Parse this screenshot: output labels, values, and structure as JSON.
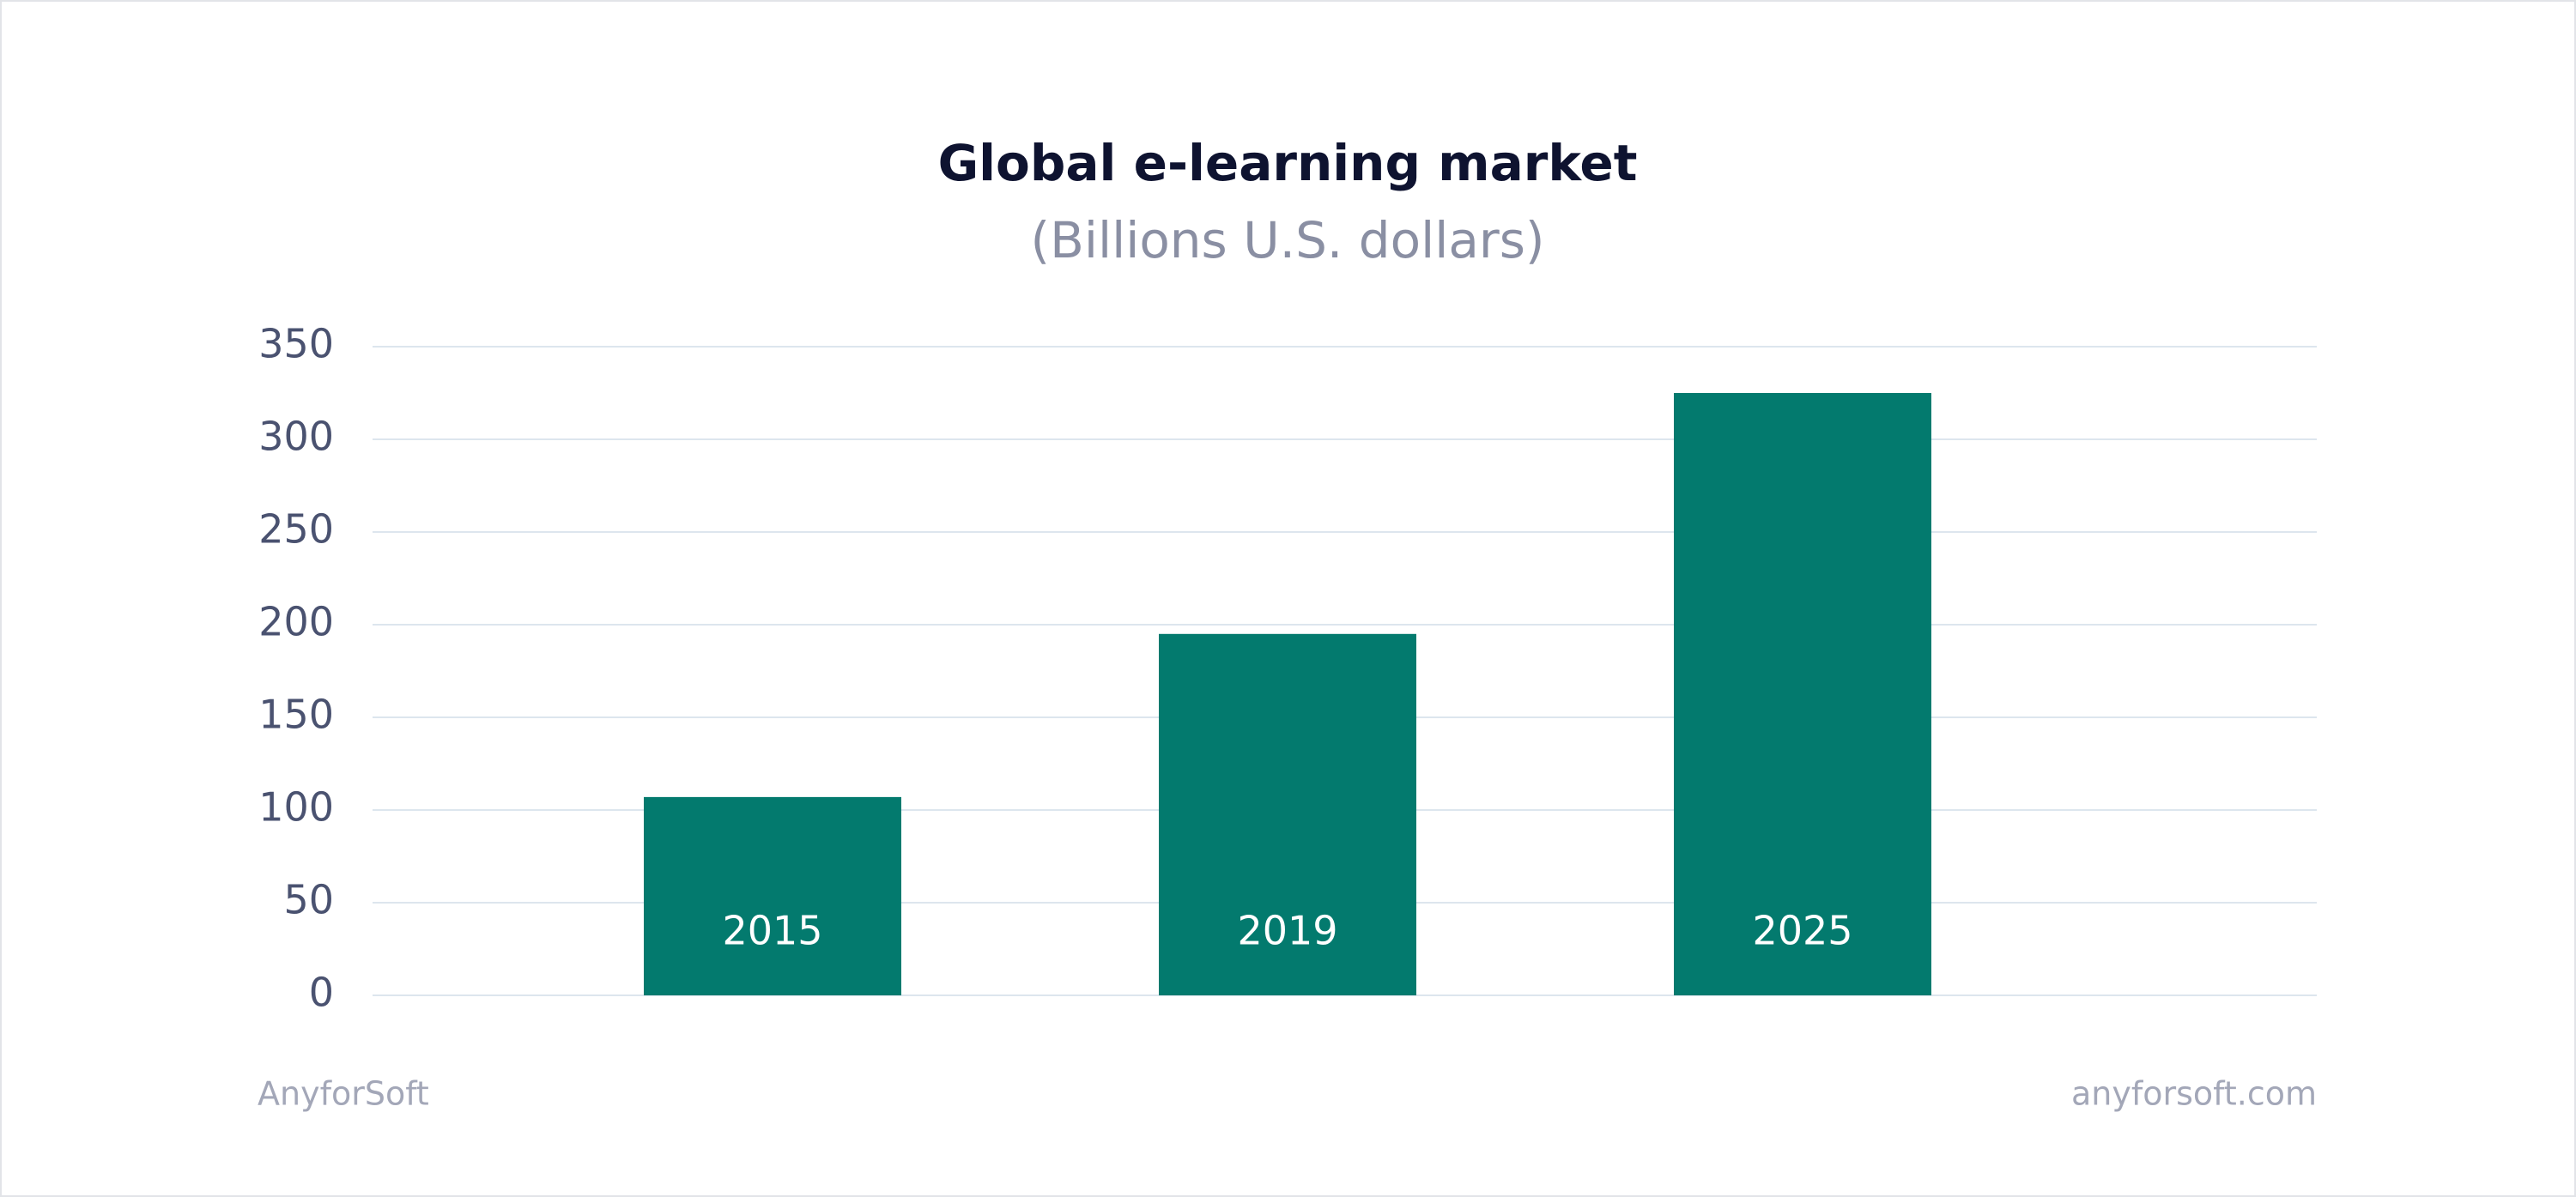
{
  "chart_data": {
    "type": "bar",
    "title": "Global e-learning market",
    "subtitle": "(Billions U.S. dollars)",
    "categories": [
      "2015",
      "2019",
      "2025"
    ],
    "values": [
      107,
      195,
      325
    ],
    "color": "#037a6e",
    "ylim": [
      0,
      350
    ],
    "yticks": [
      0,
      50,
      100,
      150,
      200,
      250,
      300,
      350
    ],
    "grid": true
  },
  "footer": {
    "left": "AnyforSoft",
    "right": "anyforsoft.com"
  }
}
